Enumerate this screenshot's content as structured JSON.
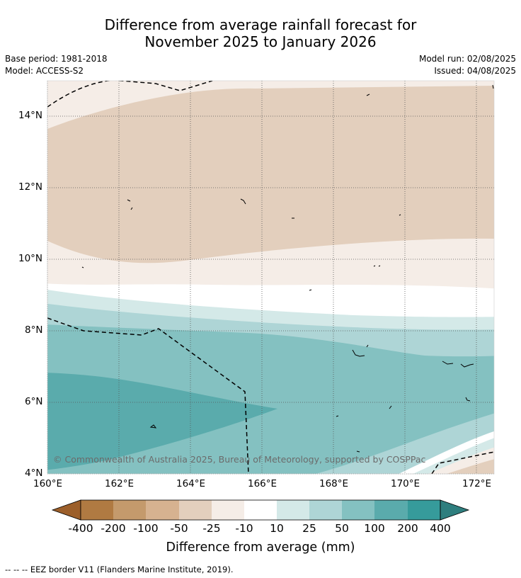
{
  "title_line1": "Difference from average rainfall forecast for",
  "title_line2": "November 2025 to January 2026",
  "base_period": "Base period: 1981-2018",
  "model": "Model: ACCESS-S2",
  "model_run": "Model run: 02/08/2025",
  "issued": "Issued: 04/08/2025",
  "lat_ticks": [
    "14°N",
    "12°N",
    "10°N",
    "8°N",
    "6°N",
    "4°N"
  ],
  "lon_ticks": [
    "160°E",
    "162°E",
    "164°E",
    "166°E",
    "168°E",
    "170°E",
    "172°E"
  ],
  "copyright": "© Commonwealth of Australia 2025, Bureau of Meteorology, supported by COSPPac",
  "colorbar": {
    "labels": [
      "-400",
      "-200",
      "-100",
      "-50",
      "-25",
      "-10",
      "10",
      "25",
      "50",
      "100",
      "200",
      "400"
    ],
    "colors": [
      "#9c5f2a",
      "#b07a42",
      "#c49a6c",
      "#d6b290",
      "#e3cfbd",
      "#f5ede7",
      "#ffffff",
      "#d4e9e8",
      "#aed5d6",
      "#84c1c1",
      "#5aabac",
      "#369b9b",
      "#2e7e7e"
    ],
    "title": "Difference from average (mm)"
  },
  "footer": "--  --  -- EEZ border V11 (Flanders Marine Institute, 2019)."
}
